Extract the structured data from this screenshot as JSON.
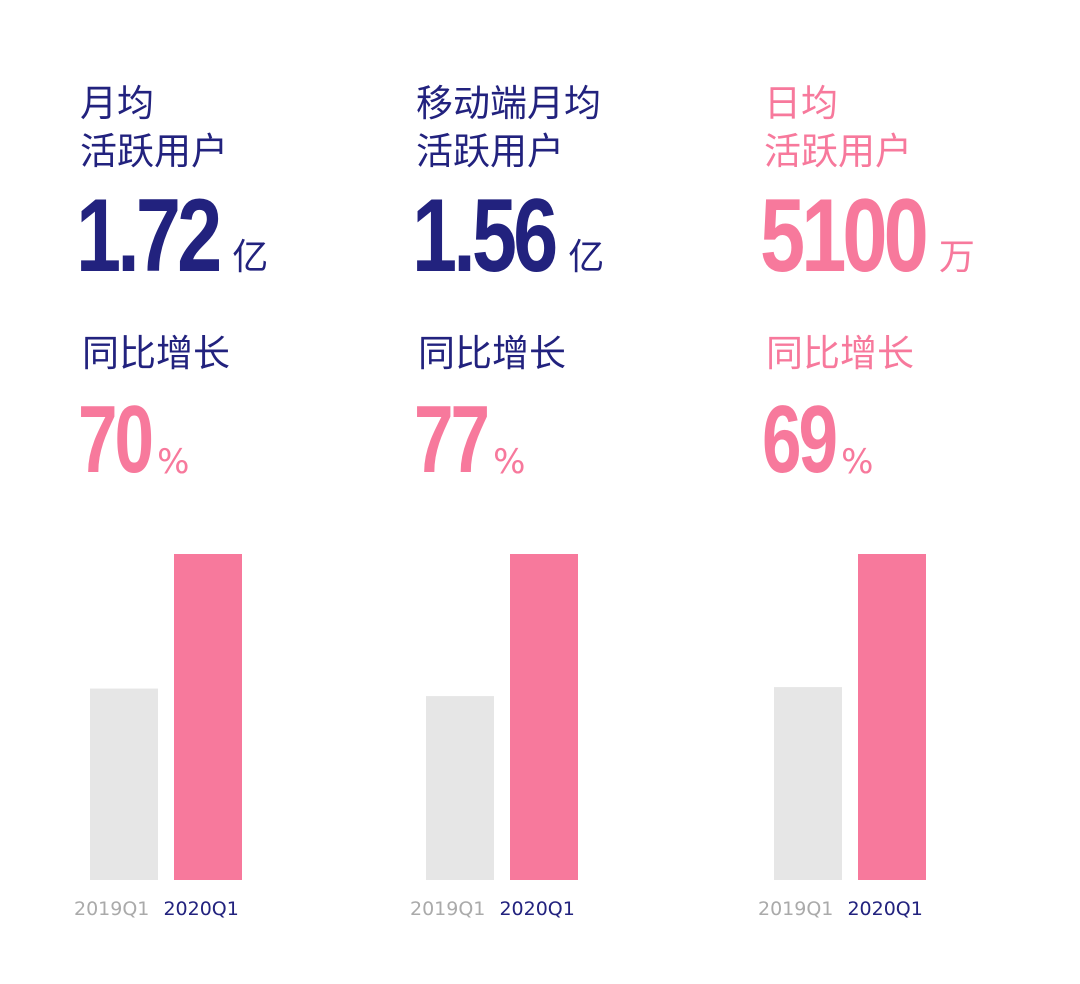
{
  "colors": {
    "navy": "#22227e",
    "pink": "#f7799c",
    "gray_bar": "#e6e6e6"
  },
  "chart_data": [
    {
      "type": "bar",
      "title": "月均 活跃用户",
      "title_lines": [
        "月均",
        "活跃用户"
      ],
      "metric": {
        "value": "1.72",
        "unit": "亿"
      },
      "growth_label": "同比增长",
      "growth": {
        "value": "70",
        "unit": "%"
      },
      "categories": [
        "2019Q1",
        "2020Q1"
      ],
      "values": [
        1.01,
        1.72
      ],
      "ylim": [
        0,
        1.72
      ],
      "theme": "navy",
      "grid": false
    },
    {
      "type": "bar",
      "title": "移动端月均 活跃用户",
      "title_lines": [
        "移动端月均",
        "活跃用户"
      ],
      "metric": {
        "value": "1.56",
        "unit": "亿"
      },
      "growth_label": "同比增长",
      "growth": {
        "value": "77",
        "unit": "%"
      },
      "categories": [
        "2019Q1",
        "2020Q1"
      ],
      "values": [
        0.88,
        1.56
      ],
      "ylim": [
        0,
        1.56
      ],
      "theme": "navy",
      "grid": false
    },
    {
      "type": "bar",
      "title": "日均 活跃用户",
      "title_lines": [
        "日均",
        "活跃用户"
      ],
      "metric": {
        "value": "5100",
        "unit": "万"
      },
      "growth_label": "同比增长",
      "growth": {
        "value": "69",
        "unit": "%"
      },
      "categories": [
        "2019Q1",
        "2020Q1"
      ],
      "values": [
        3018,
        5100
      ],
      "ylim": [
        0,
        5100
      ],
      "theme": "pink",
      "grid": false
    }
  ]
}
